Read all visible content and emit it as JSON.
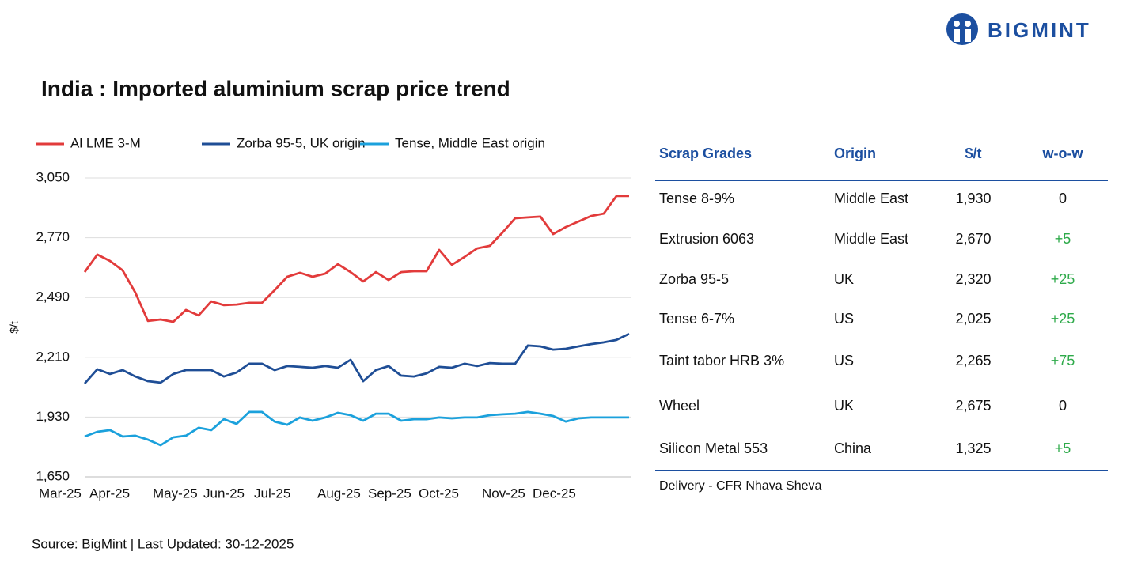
{
  "brand": "BIGMINT",
  "chart_data": {
    "type": "line",
    "title": "India : Imported aluminium scrap price trend",
    "y_label": "$/t",
    "categories": [
      "Mar-25",
      null,
      null,
      null,
      "Apr-25",
      null,
      null,
      null,
      null,
      "May-25",
      null,
      null,
      null,
      "Jun-25",
      null,
      null,
      null,
      "Jul-25",
      null,
      null,
      null,
      null,
      "Aug-25",
      null,
      null,
      null,
      "Sep-25",
      null,
      null,
      null,
      "Oct-25",
      null,
      null,
      null,
      null,
      "Nov-25",
      null,
      null,
      null,
      "Dec-25",
      null,
      null,
      null,
      null
    ],
    "series": [
      {
        "name": "Al LME 3-M",
        "color": "#e23b3b",
        "values": [
          2609,
          2691,
          2661,
          2617,
          2513,
          2380,
          2387,
          2376,
          2432,
          2406,
          2472,
          2454,
          2457,
          2465,
          2465,
          2524,
          2587,
          2606,
          2587,
          2602,
          2646,
          2609,
          2565,
          2609,
          2572,
          2609,
          2613,
          2613,
          2713,
          2643,
          2680,
          2720,
          2732,
          2794,
          2861,
          2865,
          2869,
          2787,
          2820,
          2846,
          2872,
          2883,
          2965,
          2965
        ]
      },
      {
        "name": "Zorba 95-5, UK origin",
        "color": "#1f4e96",
        "values": [
          2087,
          2154,
          2132,
          2150,
          2120,
          2098,
          2091,
          2132,
          2150,
          2150,
          2150,
          2120,
          2139,
          2180,
          2180,
          2150,
          2169,
          2165,
          2161,
          2169,
          2161,
          2198,
          2098,
          2150,
          2169,
          2124,
          2120,
          2135,
          2165,
          2161,
          2180,
          2169,
          2183,
          2180,
          2180,
          2265,
          2261,
          2246,
          2250,
          2261,
          2272,
          2280,
          2291,
          2320
        ]
      },
      {
        "name": "Tense, Middle East origin",
        "color": "#1ba1dc",
        "values": [
          1839,
          1861,
          1869,
          1839,
          1843,
          1824,
          1798,
          1835,
          1843,
          1880,
          1869,
          1920,
          1898,
          1954,
          1954,
          1909,
          1894,
          1928,
          1913,
          1928,
          1950,
          1939,
          1913,
          1946,
          1946,
          1913,
          1920,
          1920,
          1928,
          1924,
          1928,
          1928,
          1939,
          1943,
          1946,
          1954,
          1946,
          1935,
          1909,
          1924,
          1928,
          1928,
          1928,
          1928
        ]
      }
    ],
    "ylim": [
      1650,
      3050
    ],
    "yticks": [
      {
        "value": 1650,
        "label": "1,650"
      },
      {
        "value": 1930,
        "label": "1,930"
      },
      {
        "value": 2210,
        "label": "2,210"
      },
      {
        "value": 2490,
        "label": "2,490"
      },
      {
        "value": 2770,
        "label": "2,770"
      },
      {
        "value": 3050,
        "label": "3,050"
      }
    ],
    "grid": true,
    "legend": "top"
  },
  "table": {
    "columns": [
      "Scrap Grades",
      "Origin",
      "$/t",
      "w-o-w"
    ],
    "rows": [
      [
        "Tense 8-9%",
        "Middle East",
        "1,930",
        "0"
      ],
      [
        "Extrusion 6063",
        "Middle East",
        "2,670",
        "+5"
      ],
      [
        "Zorba 95-5",
        "UK",
        "2,320",
        "+25"
      ],
      [
        "Tense 6-7%",
        "US",
        "2,025",
        "+25"
      ],
      [
        "Taint tabor HRB 3%",
        "US",
        "2,265",
        "+75"
      ],
      [
        "Wheel",
        "UK",
        "2,675",
        "0"
      ],
      [
        "Silicon Metal 553",
        "China",
        "1,325",
        "+5"
      ]
    ],
    "note": "Delivery - CFR Nhava Sheva"
  },
  "source": "Source: BigMint | Last Updated: 30-12-2025"
}
